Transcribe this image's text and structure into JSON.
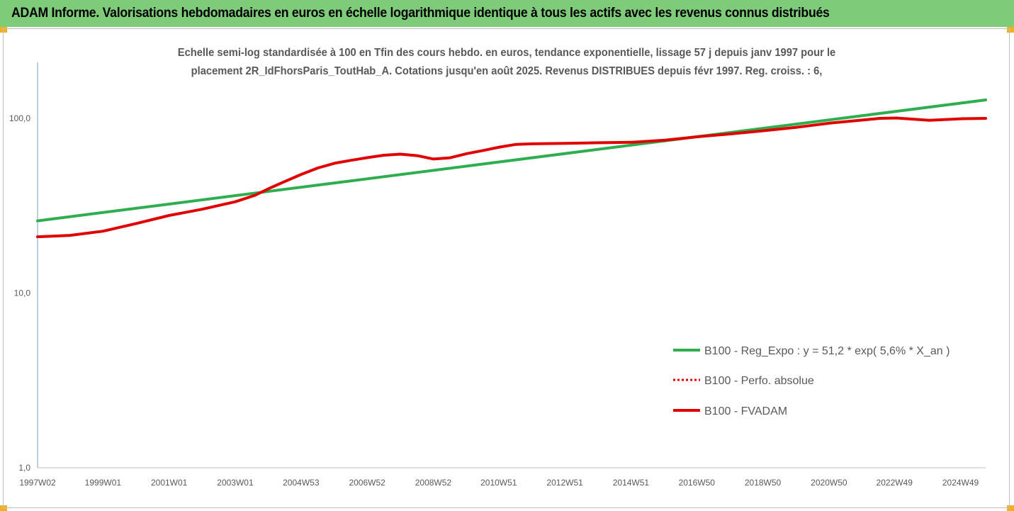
{
  "banner": {
    "title": "ADAM Informe. Valorisations hebdomadaires en euros en échelle logarithmique identique à tous les actifs avec les revenus connus distribués"
  },
  "chart_data": {
    "type": "line",
    "title_line1": "Echelle semi-log standardisée à 100 en Tfin des cours hebdo. en euros, tendance exponentielle, lissage 57 j depuis janv 1997 pour le",
    "title_line2": "placement 2R_IdFhorsParis_ToutHab_A. Cotations jusqu'en août 2025. Revenus DISTRIBUES depuis févr 1997. Reg. croiss. : 6,",
    "y_scale": "log",
    "ylim": [
      1,
      200
    ],
    "y_ticks": [
      {
        "value": 100,
        "label": "100,0"
      },
      {
        "value": 10,
        "label": "10,0"
      },
      {
        "value": 1,
        "label": "1,0"
      }
    ],
    "x_range": [
      1997.02,
      2025.7
    ],
    "x_ticks": [
      {
        "value": 1997.02,
        "label": "1997W02"
      },
      {
        "value": 1999.0,
        "label": "1999W01"
      },
      {
        "value": 2001.0,
        "label": "2001W01"
      },
      {
        "value": 2003.0,
        "label": "2003W01"
      },
      {
        "value": 2004.99,
        "label": "2004W53"
      },
      {
        "value": 2006.99,
        "label": "2006W52"
      },
      {
        "value": 2008.99,
        "label": "2008W52"
      },
      {
        "value": 2010.97,
        "label": "2010W51"
      },
      {
        "value": 2012.97,
        "label": "2012W51"
      },
      {
        "value": 2014.97,
        "label": "2014W51"
      },
      {
        "value": 2016.96,
        "label": "2016W50"
      },
      {
        "value": 2018.96,
        "label": "2018W50"
      },
      {
        "value": 2020.96,
        "label": "2020W50"
      },
      {
        "value": 2022.94,
        "label": "2022W49"
      },
      {
        "value": 2024.94,
        "label": "2024W49"
      }
    ],
    "grid": false,
    "legend_position": "bottom-right",
    "series": [
      {
        "name": "B100 - Reg_Expo : y = 51,2 * exp( 5,6% *  X_an )",
        "color": "#2fae4f",
        "style": "solid",
        "points": [
          [
            1997.02,
            25.9
          ],
          [
            2025.7,
            127.5
          ]
        ]
      },
      {
        "name": "B100 - Perfo. absolue",
        "color": "#e00000",
        "style": "dotted",
        "points": []
      },
      {
        "name": "B100 - FVADAM",
        "color": "#e00000",
        "style": "solid",
        "points": [
          [
            1997.02,
            21.0
          ],
          [
            1998.0,
            21.4
          ],
          [
            1999.0,
            22.6
          ],
          [
            2000.0,
            25.0
          ],
          [
            2001.0,
            27.8
          ],
          [
            2002.0,
            30.2
          ],
          [
            2003.0,
            33.3
          ],
          [
            2003.6,
            36.3
          ],
          [
            2004.0,
            39.5
          ],
          [
            2004.5,
            43.5
          ],
          [
            2005.0,
            47.8
          ],
          [
            2005.5,
            52.0
          ],
          [
            2006.0,
            55.3
          ],
          [
            2006.5,
            57.5
          ],
          [
            2007.0,
            59.6
          ],
          [
            2007.5,
            61.5
          ],
          [
            2008.0,
            62.4
          ],
          [
            2008.5,
            61.2
          ],
          [
            2009.0,
            58.5
          ],
          [
            2009.5,
            59.5
          ],
          [
            2010.0,
            62.8
          ],
          [
            2010.5,
            65.5
          ],
          [
            2011.0,
            68.5
          ],
          [
            2011.5,
            71.0
          ],
          [
            2012.0,
            71.5
          ],
          [
            2013.0,
            72.0
          ],
          [
            2014.0,
            72.5
          ],
          [
            2015.0,
            73.0
          ],
          [
            2016.0,
            75.0
          ],
          [
            2017.0,
            78.5
          ],
          [
            2018.0,
            81.5
          ],
          [
            2019.0,
            85.0
          ],
          [
            2020.0,
            89.0
          ],
          [
            2021.0,
            94.0
          ],
          [
            2022.0,
            98.0
          ],
          [
            2022.5,
            100.0
          ],
          [
            2023.0,
            100.5
          ],
          [
            2023.5,
            99.0
          ],
          [
            2024.0,
            97.5
          ],
          [
            2024.5,
            98.5
          ],
          [
            2025.0,
            99.5
          ],
          [
            2025.7,
            100.0
          ]
        ]
      }
    ]
  }
}
